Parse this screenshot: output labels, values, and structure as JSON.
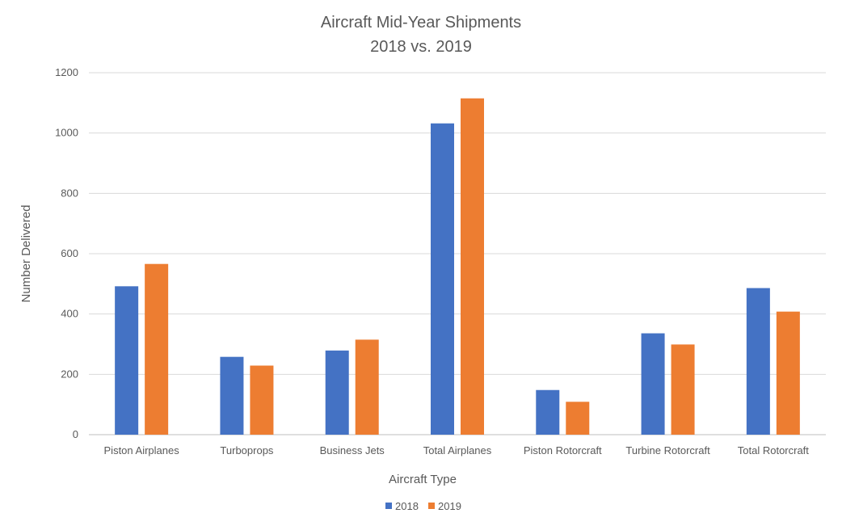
{
  "chart_data": {
    "type": "bar",
    "title": "Aircraft Mid-Year Shipments",
    "subtitle": "2018 vs. 2019",
    "xlabel": "Aircraft Type",
    "ylabel": "Number Delivered",
    "ylim": [
      0,
      1200
    ],
    "yticks": [
      0,
      200,
      400,
      600,
      800,
      1000,
      1200
    ],
    "grid": true,
    "legend_position": "bottom",
    "categories": [
      "Piston Airplanes",
      "Turboprops",
      "Business Jets",
      "Total Airplanes",
      "Piston Rotorcraft",
      "Turbine Rotorcraft",
      "Total Rotorcraft"
    ],
    "series": [
      {
        "name": "2018",
        "color": "#4472C4",
        "values": [
          492,
          258,
          279,
          1032,
          148,
          336,
          486
        ]
      },
      {
        "name": "2019",
        "color": "#ED7D31",
        "values": [
          566,
          229,
          315,
          1115,
          109,
          299,
          408
        ]
      }
    ]
  }
}
